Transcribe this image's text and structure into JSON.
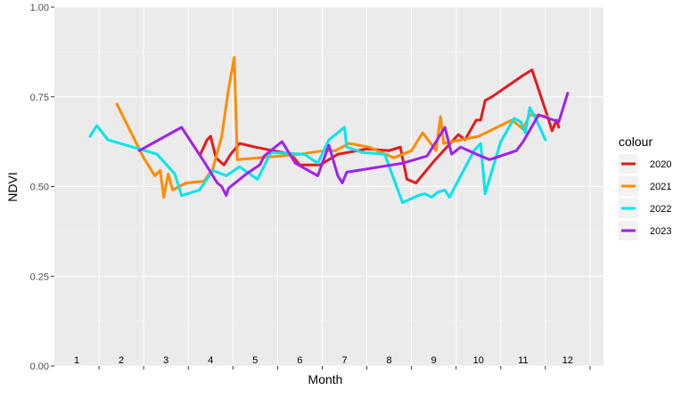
{
  "chart_data": {
    "type": "line",
    "title": "",
    "xlabel": "Month",
    "ylabel": "NDVI",
    "xlim": [
      0,
      12.3
    ],
    "ylim": [
      0,
      1
    ],
    "grid": true,
    "legend_position": "right",
    "legend_title": "colour",
    "x_tick_labels": [
      "1",
      "2",
      "3",
      "4",
      "5",
      "6",
      "7",
      "8",
      "9",
      "10",
      "11",
      "12"
    ],
    "y_ticks": [
      0,
      0.25,
      0.5,
      0.75,
      1
    ],
    "y_tick_labels": [
      "0.00",
      "0.25",
      "0.50",
      "0.75",
      "1.00"
    ],
    "series": [
      {
        "name": "2020",
        "color": "#e31a1c",
        "points": [
          [
            3.27,
            0.59
          ],
          [
            3.42,
            0.63
          ],
          [
            3.5,
            0.64
          ],
          [
            3.62,
            0.58
          ],
          [
            3.8,
            0.56
          ],
          [
            3.95,
            0.59
          ],
          [
            4.15,
            0.62
          ],
          [
            4.5,
            0.61
          ],
          [
            4.9,
            0.6
          ],
          [
            5.3,
            0.59
          ],
          [
            5.5,
            0.56
          ],
          [
            5.95,
            0.56
          ],
          [
            6.35,
            0.59
          ],
          [
            6.8,
            0.6
          ],
          [
            7.0,
            0.605
          ],
          [
            7.5,
            0.6
          ],
          [
            7.75,
            0.61
          ],
          [
            7.9,
            0.52
          ],
          [
            8.1,
            0.51
          ],
          [
            8.5,
            0.57
          ],
          [
            9.05,
            0.645
          ],
          [
            9.2,
            0.63
          ],
          [
            9.45,
            0.685
          ],
          [
            9.55,
            0.685
          ],
          [
            9.65,
            0.74
          ],
          [
            9.8,
            0.75
          ],
          [
            10.5,
            0.81
          ],
          [
            10.7,
            0.825
          ],
          [
            11.05,
            0.695
          ],
          [
            11.15,
            0.655
          ],
          [
            11.25,
            0.685
          ],
          [
            11.3,
            0.665
          ]
        ]
      },
      {
        "name": "2021",
        "color": "#ff8c00",
        "points": [
          [
            1.4,
            0.73
          ],
          [
            2.0,
            0.58
          ],
          [
            2.25,
            0.53
          ],
          [
            2.37,
            0.545
          ],
          [
            2.45,
            0.47
          ],
          [
            2.55,
            0.535
          ],
          [
            2.65,
            0.49
          ],
          [
            2.95,
            0.51
          ],
          [
            3.35,
            0.515
          ],
          [
            3.55,
            0.55
          ],
          [
            3.75,
            0.64
          ],
          [
            3.9,
            0.77
          ],
          [
            4.03,
            0.86
          ],
          [
            4.1,
            0.575
          ],
          [
            4.6,
            0.58
          ],
          [
            5.5,
            0.59
          ],
          [
            6.05,
            0.6
          ],
          [
            6.3,
            0.6
          ],
          [
            6.6,
            0.62
          ],
          [
            7.05,
            0.61
          ],
          [
            7.6,
            0.58
          ],
          [
            8.0,
            0.6
          ],
          [
            8.25,
            0.65
          ],
          [
            8.55,
            0.6
          ],
          [
            8.65,
            0.695
          ],
          [
            8.72,
            0.62
          ],
          [
            9.5,
            0.64
          ],
          [
            10.25,
            0.685
          ],
          [
            10.5,
            0.66
          ],
          [
            10.65,
            0.7
          ],
          [
            11.05,
            0.695
          ]
        ]
      },
      {
        "name": "2022",
        "color": "#00e5ee",
        "points": [
          [
            0.8,
            0.64
          ],
          [
            0.95,
            0.67
          ],
          [
            1.2,
            0.63
          ],
          [
            2.3,
            0.59
          ],
          [
            2.7,
            0.535
          ],
          [
            2.85,
            0.475
          ],
          [
            3.25,
            0.49
          ],
          [
            3.55,
            0.545
          ],
          [
            3.85,
            0.53
          ],
          [
            4.15,
            0.555
          ],
          [
            4.55,
            0.52
          ],
          [
            4.85,
            0.595
          ],
          [
            5.6,
            0.59
          ],
          [
            5.9,
            0.565
          ],
          [
            6.15,
            0.63
          ],
          [
            6.5,
            0.665
          ],
          [
            6.55,
            0.61
          ],
          [
            6.9,
            0.595
          ],
          [
            7.4,
            0.59
          ],
          [
            7.8,
            0.455
          ],
          [
            8.15,
            0.475
          ],
          [
            8.3,
            0.48
          ],
          [
            8.45,
            0.47
          ],
          [
            8.6,
            0.485
          ],
          [
            8.75,
            0.49
          ],
          [
            8.85,
            0.47
          ],
          [
            9.4,
            0.6
          ],
          [
            9.55,
            0.62
          ],
          [
            9.65,
            0.48
          ],
          [
            10.0,
            0.625
          ],
          [
            10.3,
            0.69
          ],
          [
            10.45,
            0.68
          ],
          [
            10.55,
            0.65
          ],
          [
            10.65,
            0.72
          ],
          [
            10.8,
            0.685
          ],
          [
            11.0,
            0.63
          ]
        ]
      },
      {
        "name": "2023",
        "color": "#a020f0",
        "points": [
          [
            1.9,
            0.6
          ],
          [
            2.85,
            0.665
          ],
          [
            3.35,
            0.57
          ],
          [
            3.65,
            0.51
          ],
          [
            3.75,
            0.5
          ],
          [
            3.85,
            0.475
          ],
          [
            3.9,
            0.495
          ],
          [
            4.3,
            0.535
          ],
          [
            4.6,
            0.56
          ],
          [
            4.7,
            0.585
          ],
          [
            5.1,
            0.625
          ],
          [
            5.4,
            0.565
          ],
          [
            5.9,
            0.53
          ],
          [
            6.15,
            0.615
          ],
          [
            6.35,
            0.53
          ],
          [
            6.45,
            0.51
          ],
          [
            6.55,
            0.54
          ],
          [
            7.8,
            0.565
          ],
          [
            8.35,
            0.585
          ],
          [
            8.75,
            0.665
          ],
          [
            8.9,
            0.59
          ],
          [
            9.1,
            0.61
          ],
          [
            9.55,
            0.585
          ],
          [
            9.75,
            0.575
          ],
          [
            10.35,
            0.6
          ],
          [
            10.5,
            0.625
          ],
          [
            10.85,
            0.7
          ],
          [
            11.3,
            0.68
          ],
          [
            11.5,
            0.76
          ]
        ]
      }
    ]
  }
}
